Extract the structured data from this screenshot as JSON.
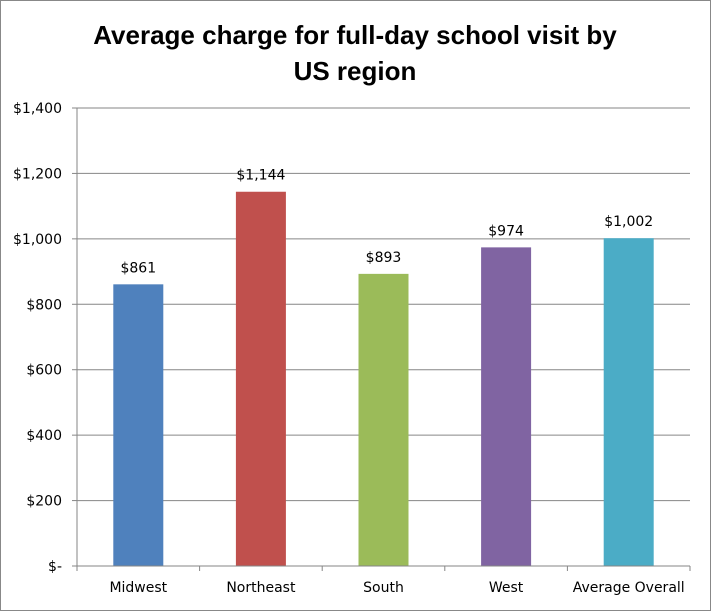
{
  "chart_data": {
    "type": "bar",
    "title_lines": [
      "Average charge for full-day school visit by",
      "US region"
    ],
    "categories": [
      "Midwest",
      "Northeast",
      "South",
      "West",
      "Average Overall"
    ],
    "values": [
      861,
      1144,
      893,
      974,
      1002
    ],
    "data_labels": [
      "$861",
      "$1,144",
      "$893",
      "$974",
      "$1,002"
    ],
    "colors": [
      "#4f81bd",
      "#c0504d",
      "#9bbb59",
      "#8064a2",
      "#4bacc6"
    ],
    "ylim": [
      0,
      1400
    ],
    "yticks": [
      0,
      200,
      400,
      600,
      800,
      1000,
      1200,
      1400
    ],
    "ytick_labels": [
      "$-",
      "$200",
      "$400",
      "$600",
      "$800",
      "$1,000",
      "$1,200",
      "$1,400"
    ],
    "xlabel": "",
    "ylabel": "",
    "grid": true,
    "gridline_color": "#868686",
    "legend": "none"
  }
}
